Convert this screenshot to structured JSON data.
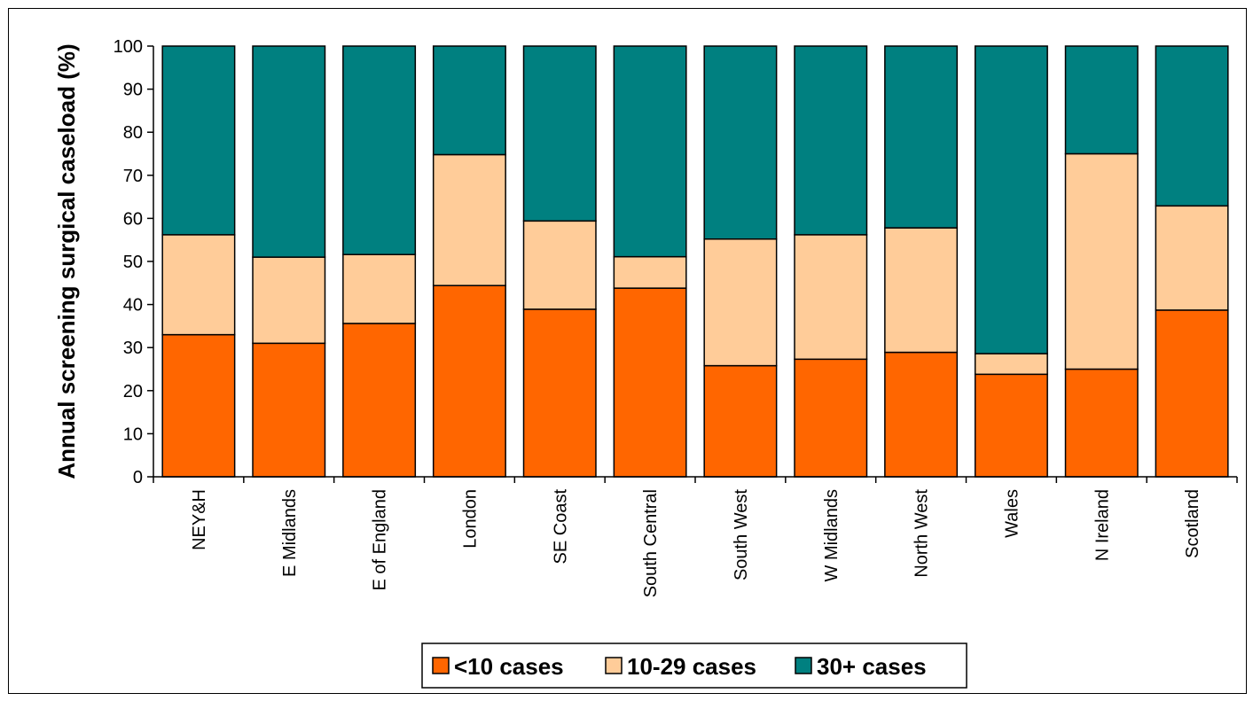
{
  "chart_data": {
    "type": "bar",
    "stacked": true,
    "ylabel": "Annual screening surgical caseload (%)",
    "xlabel": "",
    "ylim": [
      0,
      100
    ],
    "yticks": [
      0,
      10,
      20,
      30,
      40,
      50,
      60,
      70,
      80,
      90,
      100
    ],
    "categories": [
      "NEY&H",
      "E Midlands",
      "E of England",
      "London",
      "SE Coast",
      "South Central",
      "South West",
      "W Midlands",
      "North West",
      "Wales",
      "N Ireland",
      "Scotland"
    ],
    "series": [
      {
        "name": "<10 cases",
        "color": "#ff6600",
        "values": [
          33,
          31,
          35.6,
          44.4,
          38.9,
          43.8,
          25.8,
          27.3,
          28.9,
          23.8,
          25,
          38.7
        ]
      },
      {
        "name": "10-29 cases",
        "color": "#ffcc99",
        "values": [
          23.2,
          20,
          16,
          30.4,
          20.5,
          7.3,
          29.4,
          28.9,
          28.9,
          4.8,
          50,
          24.2
        ]
      },
      {
        "name": "30+ cases",
        "color": "#008080",
        "values": [
          43.8,
          49,
          48.4,
          25.2,
          40.6,
          48.9,
          44.8,
          43.8,
          42.2,
          71.4,
          25,
          37.1
        ]
      }
    ],
    "grid": false,
    "legend_position": "bottom"
  }
}
